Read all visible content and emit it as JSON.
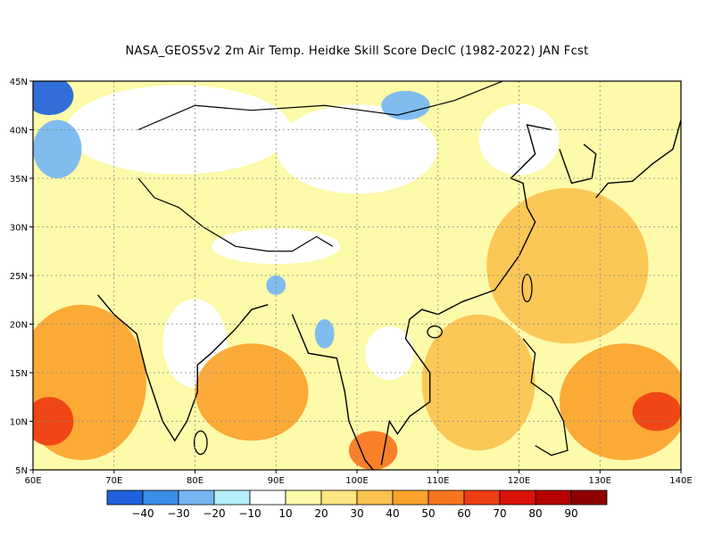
{
  "title": "NASA_GEOS5v2  2m Air Temp. Heidke Skill Score DeclC (1982-2022) JAN Fcst",
  "map": {
    "lon_range": [
      60,
      140
    ],
    "lat_range": [
      5,
      45
    ],
    "lon_ticks": [
      {
        "value": 60,
        "label": "60E"
      },
      {
        "value": 70,
        "label": "70E"
      },
      {
        "value": 80,
        "label": "80E"
      },
      {
        "value": 90,
        "label": "90E"
      },
      {
        "value": 100,
        "label": "100E"
      },
      {
        "value": 110,
        "label": "110E"
      },
      {
        "value": 120,
        "label": "120E"
      },
      {
        "value": 130,
        "label": "130E"
      },
      {
        "value": 140,
        "label": "140E"
      }
    ],
    "lat_ticks": [
      {
        "value": 5,
        "label": "5N"
      },
      {
        "value": 10,
        "label": "10N"
      },
      {
        "value": 15,
        "label": "15N"
      },
      {
        "value": 20,
        "label": "20N"
      },
      {
        "value": 25,
        "label": "25N"
      },
      {
        "value": 30,
        "label": "30N"
      },
      {
        "value": 35,
        "label": "35N"
      },
      {
        "value": 40,
        "label": "40N"
      },
      {
        "value": 45,
        "label": "45N"
      }
    ],
    "gridlines": true
  },
  "colorbar": {
    "colors": [
      "#1f62dc",
      "#3a8de8",
      "#75b6f3",
      "#b4eefa",
      "#ffffff",
      "#fdfaaa",
      "#fde581",
      "#fbc24f",
      "#fba32c",
      "#f8751d",
      "#ef3e12",
      "#dc1208",
      "#b60200",
      "#8f0000"
    ],
    "labels": [
      "-40",
      "-30",
      "-20",
      "-10",
      "10",
      "20",
      "30",
      "40",
      "50",
      "60",
      "70",
      "80",
      "90"
    ]
  },
  "regions": [
    {
      "name": "central-asia-blue",
      "level": -30,
      "lon": 62,
      "lat": 43.5,
      "rx": 3,
      "ry": 2
    },
    {
      "name": "iran-blue",
      "level": -10,
      "lon": 63,
      "lat": 38,
      "rx": 3,
      "ry": 3
    },
    {
      "name": "mongolia-blue",
      "level": -10,
      "lon": 106,
      "lat": 42.5,
      "rx": 3,
      "ry": 1.5
    },
    {
      "name": "myanmar-blue",
      "level": -10,
      "lon": 96,
      "lat": 19,
      "rx": 1.2,
      "ry": 1.5
    },
    {
      "name": "bangladesh-blue",
      "level": -10,
      "lon": 90,
      "lat": 24,
      "rx": 1.2,
      "ry": 1
    },
    {
      "name": "arabian-sea-warm",
      "level": 40,
      "lon": 66,
      "lat": 14,
      "rx": 8,
      "ry": 8
    },
    {
      "name": "arabian-sea-hot",
      "level": 60,
      "lon": 62,
      "lat": 10,
      "rx": 3,
      "ry": 2.5
    },
    {
      "name": "bay-of-bengal-warm",
      "level": 40,
      "lon": 87,
      "lat": 13,
      "rx": 7,
      "ry": 5
    },
    {
      "name": "south-china-sea-warm",
      "level": 30,
      "lon": 115,
      "lat": 14,
      "rx": 7,
      "ry": 7
    },
    {
      "name": "pacific-warm",
      "level": 40,
      "lon": 133,
      "lat": 12,
      "rx": 8,
      "ry": 6
    },
    {
      "name": "pacific-hot",
      "level": 60,
      "lon": 137,
      "lat": 11,
      "rx": 3,
      "ry": 2
    },
    {
      "name": "east-china-sea-warm",
      "level": 30,
      "lon": 126,
      "lat": 26,
      "rx": 10,
      "ry": 8
    },
    {
      "name": "andaman-hot",
      "level": 50,
      "lon": 102,
      "lat": 7,
      "rx": 3,
      "ry": 2
    }
  ]
}
